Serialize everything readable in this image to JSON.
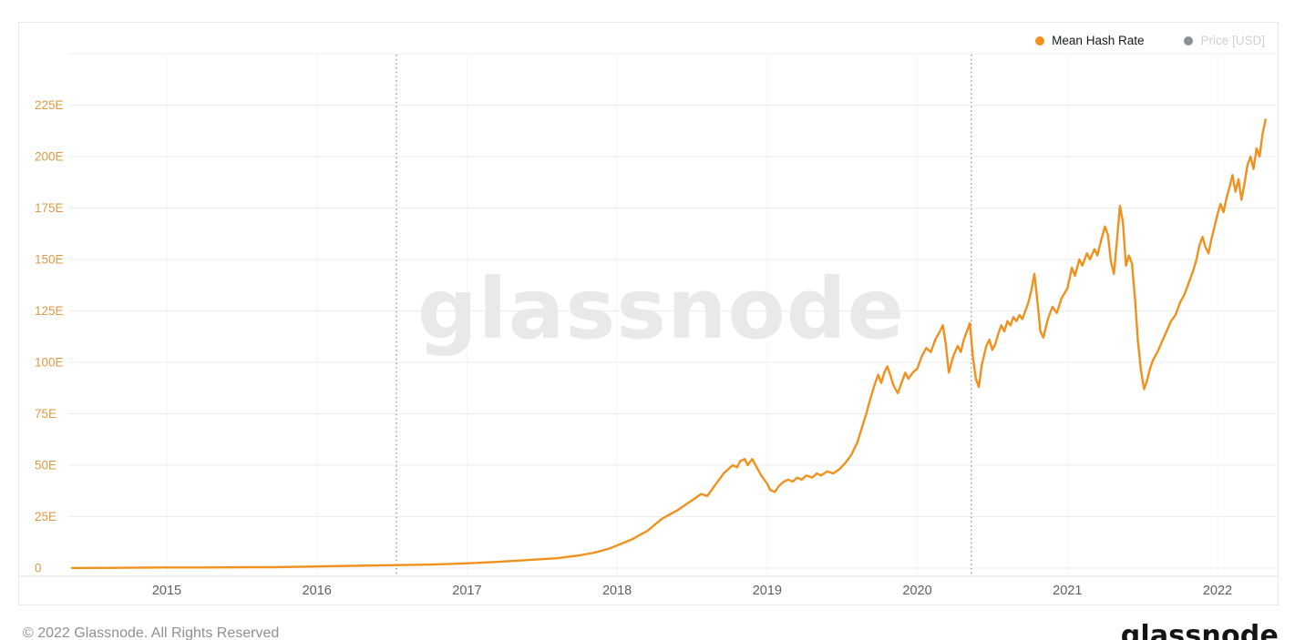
{
  "page": {
    "watermark": "glassnode",
    "footer_copyright": "© 2022 Glassnode. All Rights Reserved",
    "footer_logo": "glassnode"
  },
  "legend": {
    "items": [
      {
        "label": "Mean Hash Rate",
        "color": "#f0911d",
        "active": true
      },
      {
        "label": "Price [USD]",
        "color": "#8b9096",
        "active": false
      }
    ]
  },
  "colors": {
    "series_line": "#f0911d",
    "y_axis_labels": "#dd9a43",
    "x_axis_labels": "#5b6066",
    "gridline": "#ededed",
    "year_gridline": "#f5f5f5",
    "axis_border": "#e6e6e6",
    "halving_line": "#6b6e72",
    "card_border": "#e8e8e8",
    "watermark": "#e9e9e9"
  },
  "chart_data": {
    "type": "line",
    "title": "",
    "xlabel": "",
    "ylabel": "",
    "legend_position": "top-right",
    "grid": true,
    "xlim": [
      2014.34,
      2022.4
    ],
    "ylim": [
      0,
      250
    ],
    "x_axis": {
      "ticks": [
        {
          "value": 2015,
          "label": "2015"
        },
        {
          "value": 2016,
          "label": "2016"
        },
        {
          "value": 2017,
          "label": "2017"
        },
        {
          "value": 2018,
          "label": "2018"
        },
        {
          "value": 2019,
          "label": "2019"
        },
        {
          "value": 2020,
          "label": "2020"
        },
        {
          "value": 2021,
          "label": "2021"
        },
        {
          "value": 2022,
          "label": "2022"
        }
      ]
    },
    "y_axis": {
      "ticks": [
        {
          "value": 225,
          "label": "225E"
        },
        {
          "value": 200,
          "label": "200E"
        },
        {
          "value": 175,
          "label": "175E"
        },
        {
          "value": 150,
          "label": "150E"
        },
        {
          "value": 125,
          "label": "125E"
        },
        {
          "value": 100,
          "label": "100E"
        },
        {
          "value": 75,
          "label": "75E"
        },
        {
          "value": 50,
          "label": "50E"
        },
        {
          "value": 25,
          "label": "25E"
        },
        {
          "value": 0,
          "label": "0"
        }
      ],
      "unlabeled_gridlines": [
        250
      ]
    },
    "annotations": [
      {
        "type": "vline",
        "id": "dotted-line-1",
        "x": 2016.53,
        "style": "dotted"
      },
      {
        "type": "vline",
        "id": "dotted-line-2",
        "x": 2020.36,
        "style": "dotted"
      }
    ],
    "series": [
      {
        "name": "Mean Hash Rate",
        "color": "#f0911d",
        "points": [
          [
            2014.37,
            0.05
          ],
          [
            2014.55,
            0.1
          ],
          [
            2014.75,
            0.18
          ],
          [
            2015.0,
            0.3
          ],
          [
            2015.25,
            0.33
          ],
          [
            2015.5,
            0.4
          ],
          [
            2015.75,
            0.5
          ],
          [
            2016.0,
            0.8
          ],
          [
            2016.25,
            1.1
          ],
          [
            2016.5,
            1.4
          ],
          [
            2016.75,
            1.7
          ],
          [
            2017.0,
            2.3
          ],
          [
            2017.2,
            3.0
          ],
          [
            2017.4,
            3.9
          ],
          [
            2017.6,
            4.8
          ],
          [
            2017.75,
            6.2
          ],
          [
            2017.85,
            7.5
          ],
          [
            2017.95,
            9.5
          ],
          [
            2018.0,
            11
          ],
          [
            2018.05,
            12.5
          ],
          [
            2018.1,
            14
          ],
          [
            2018.15,
            16
          ],
          [
            2018.2,
            18
          ],
          [
            2018.25,
            21
          ],
          [
            2018.3,
            24
          ],
          [
            2018.35,
            26
          ],
          [
            2018.4,
            28
          ],
          [
            2018.44,
            30
          ],
          [
            2018.48,
            32
          ],
          [
            2018.52,
            34
          ],
          [
            2018.56,
            36
          ],
          [
            2018.6,
            35
          ],
          [
            2018.64,
            39
          ],
          [
            2018.68,
            43
          ],
          [
            2018.71,
            46
          ],
          [
            2018.74,
            48
          ],
          [
            2018.77,
            50
          ],
          [
            2018.8,
            49
          ],
          [
            2018.82,
            52
          ],
          [
            2018.85,
            53
          ],
          [
            2018.87,
            50
          ],
          [
            2018.9,
            53
          ],
          [
            2018.93,
            49
          ],
          [
            2018.96,
            45
          ],
          [
            2019.0,
            41
          ],
          [
            2019.02,
            38
          ],
          [
            2019.05,
            37
          ],
          [
            2019.08,
            40
          ],
          [
            2019.11,
            42
          ],
          [
            2019.14,
            43
          ],
          [
            2019.17,
            42
          ],
          [
            2019.2,
            44
          ],
          [
            2019.23,
            43
          ],
          [
            2019.26,
            45
          ],
          [
            2019.3,
            44
          ],
          [
            2019.33,
            46
          ],
          [
            2019.36,
            45
          ],
          [
            2019.4,
            47
          ],
          [
            2019.44,
            46
          ],
          [
            2019.48,
            48
          ],
          [
            2019.52,
            51
          ],
          [
            2019.56,
            55
          ],
          [
            2019.6,
            61
          ],
          [
            2019.63,
            68
          ],
          [
            2019.66,
            75
          ],
          [
            2019.69,
            83
          ],
          [
            2019.72,
            90
          ],
          [
            2019.74,
            94
          ],
          [
            2019.76,
            90
          ],
          [
            2019.78,
            95
          ],
          [
            2019.8,
            98
          ],
          [
            2019.82,
            94
          ],
          [
            2019.84,
            89
          ],
          [
            2019.87,
            85
          ],
          [
            2019.9,
            91
          ],
          [
            2019.92,
            95
          ],
          [
            2019.94,
            92
          ],
          [
            2019.97,
            95
          ],
          [
            2020.0,
            97
          ],
          [
            2020.03,
            103
          ],
          [
            2020.06,
            107
          ],
          [
            2020.09,
            105
          ],
          [
            2020.12,
            111
          ],
          [
            2020.15,
            115
          ],
          [
            2020.17,
            118
          ],
          [
            2020.19,
            109
          ],
          [
            2020.21,
            95
          ],
          [
            2020.24,
            103
          ],
          [
            2020.27,
            108
          ],
          [
            2020.29,
            105
          ],
          [
            2020.31,
            111
          ],
          [
            2020.33,
            115
          ],
          [
            2020.35,
            119
          ],
          [
            2020.37,
            103
          ],
          [
            2020.39,
            92
          ],
          [
            2020.41,
            88
          ],
          [
            2020.43,
            99
          ],
          [
            2020.46,
            108
          ],
          [
            2020.48,
            111
          ],
          [
            2020.5,
            106
          ],
          [
            2020.52,
            109
          ],
          [
            2020.54,
            114
          ],
          [
            2020.56,
            118
          ],
          [
            2020.58,
            115
          ],
          [
            2020.6,
            120
          ],
          [
            2020.62,
            118
          ],
          [
            2020.64,
            122
          ],
          [
            2020.66,
            120
          ],
          [
            2020.68,
            123
          ],
          [
            2020.7,
            121
          ],
          [
            2020.72,
            125
          ],
          [
            2020.74,
            129
          ],
          [
            2020.76,
            135
          ],
          [
            2020.78,
            143
          ],
          [
            2020.8,
            130
          ],
          [
            2020.82,
            115
          ],
          [
            2020.84,
            112
          ],
          [
            2020.87,
            121
          ],
          [
            2020.9,
            127
          ],
          [
            2020.93,
            124
          ],
          [
            2020.96,
            131
          ],
          [
            2021.0,
            136
          ],
          [
            2021.03,
            146
          ],
          [
            2021.05,
            142
          ],
          [
            2021.08,
            150
          ],
          [
            2021.1,
            147
          ],
          [
            2021.13,
            153
          ],
          [
            2021.15,
            150
          ],
          [
            2021.18,
            155
          ],
          [
            2021.2,
            152
          ],
          [
            2021.22,
            158
          ],
          [
            2021.25,
            166
          ],
          [
            2021.27,
            162
          ],
          [
            2021.29,
            149
          ],
          [
            2021.31,
            143
          ],
          [
            2021.33,
            159
          ],
          [
            2021.35,
            176
          ],
          [
            2021.37,
            168
          ],
          [
            2021.39,
            147
          ],
          [
            2021.41,
            152
          ],
          [
            2021.43,
            148
          ],
          [
            2021.45,
            131
          ],
          [
            2021.47,
            110
          ],
          [
            2021.49,
            96
          ],
          [
            2021.51,
            87
          ],
          [
            2021.53,
            91
          ],
          [
            2021.55,
            97
          ],
          [
            2021.57,
            101
          ],
          [
            2021.6,
            105
          ],
          [
            2021.63,
            110
          ],
          [
            2021.66,
            115
          ],
          [
            2021.69,
            120
          ],
          [
            2021.72,
            123
          ],
          [
            2021.75,
            129
          ],
          [
            2021.78,
            133
          ],
          [
            2021.81,
            139
          ],
          [
            2021.84,
            145
          ],
          [
            2021.86,
            150
          ],
          [
            2021.88,
            157
          ],
          [
            2021.9,
            161
          ],
          [
            2021.92,
            156
          ],
          [
            2021.94,
            153
          ],
          [
            2021.96,
            160
          ],
          [
            2021.98,
            166
          ],
          [
            2022.0,
            172
          ],
          [
            2022.02,
            177
          ],
          [
            2022.04,
            173
          ],
          [
            2022.06,
            180
          ],
          [
            2022.08,
            185
          ],
          [
            2022.1,
            191
          ],
          [
            2022.12,
            183
          ],
          [
            2022.14,
            189
          ],
          [
            2022.16,
            179
          ],
          [
            2022.18,
            187
          ],
          [
            2022.2,
            196
          ],
          [
            2022.22,
            200
          ],
          [
            2022.24,
            194
          ],
          [
            2022.26,
            204
          ],
          [
            2022.28,
            200
          ],
          [
            2022.3,
            211
          ],
          [
            2022.32,
            218
          ]
        ]
      }
    ]
  }
}
